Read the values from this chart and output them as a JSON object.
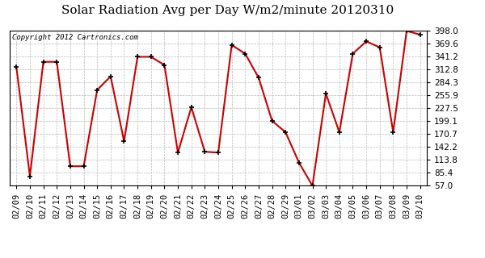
{
  "title": "Solar Radiation Avg per Day W/m2/minute 20120310",
  "copyright": "Copyright 2012 Cartronics.com",
  "dates": [
    "02/09",
    "02/10",
    "02/11",
    "02/12",
    "02/13",
    "02/14",
    "02/15",
    "02/16",
    "02/17",
    "02/18",
    "02/19",
    "02/20",
    "02/21",
    "02/22",
    "02/23",
    "02/24",
    "02/25",
    "02/26",
    "02/27",
    "02/28",
    "02/29",
    "03/01",
    "03/02",
    "03/03",
    "03/04",
    "03/05",
    "03/06",
    "03/07",
    "03/08",
    "03/09",
    "03/10"
  ],
  "values": [
    318,
    78,
    330,
    330,
    100,
    100,
    268,
    298,
    155,
    341,
    341,
    323,
    130,
    230,
    132,
    130,
    367,
    348,
    295,
    200,
    175,
    108,
    57,
    260,
    175,
    348,
    375,
    362,
    175,
    398,
    390
  ],
  "line_color": "#cc0000",
  "marker_color": "#000000",
  "bg_color": "#ffffff",
  "plot_bg_color": "#ffffff",
  "grid_color": "#bbbbbb",
  "ylim": [
    57.0,
    398.0
  ],
  "yticks": [
    57.0,
    85.4,
    113.8,
    142.2,
    170.7,
    199.1,
    227.5,
    255.9,
    284.3,
    312.8,
    341.2,
    369.6,
    398.0
  ],
  "title_fontsize": 11,
  "copyright_fontsize": 6.5,
  "tick_fontsize": 7.5
}
